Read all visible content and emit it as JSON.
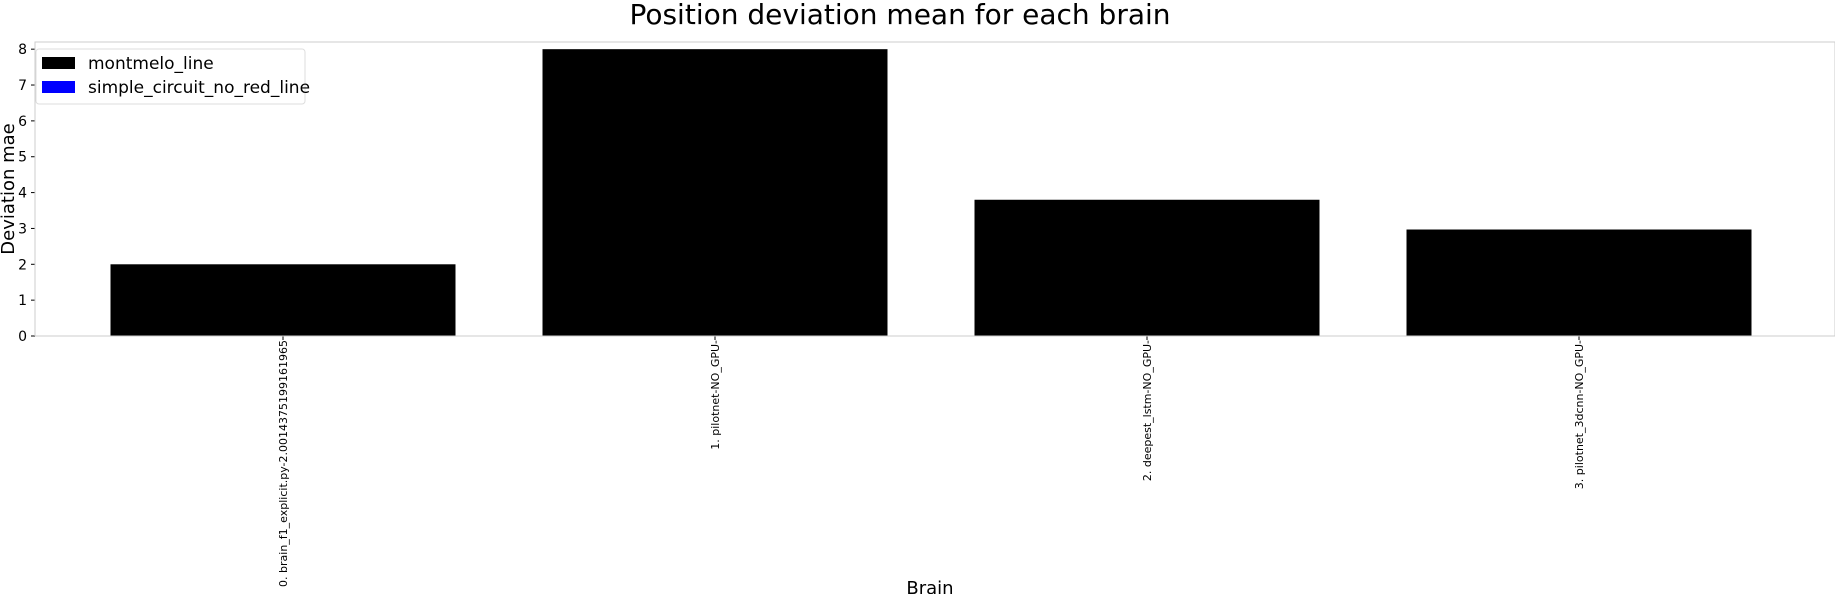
{
  "chart_data": {
    "type": "bar",
    "title": "Position deviation mean for each brain",
    "xlabel": "Brain",
    "ylabel": "Deviation mae",
    "ylim": [
      0,
      8.2
    ],
    "yticks": [
      0,
      1,
      2,
      3,
      4,
      5,
      6,
      7,
      8
    ],
    "categories": [
      "0. brain_f1_explicit.py-2.0014375199161965",
      "1. pilotnet-NO_GPU-",
      "2. deepest_lstm-NO_GPU-",
      "3. pilotnet_3dcnn-NO_GPU-"
    ],
    "series": [
      {
        "name": "montmelo_line",
        "color": "#000000",
        "values": [
          2.0,
          8.0,
          3.8,
          2.97
        ]
      },
      {
        "name": "simple_circuit_no_red_line",
        "color": "#0000ff",
        "values": [
          null,
          null,
          null,
          null
        ]
      }
    ],
    "legend": "top-left",
    "grid": false
  }
}
